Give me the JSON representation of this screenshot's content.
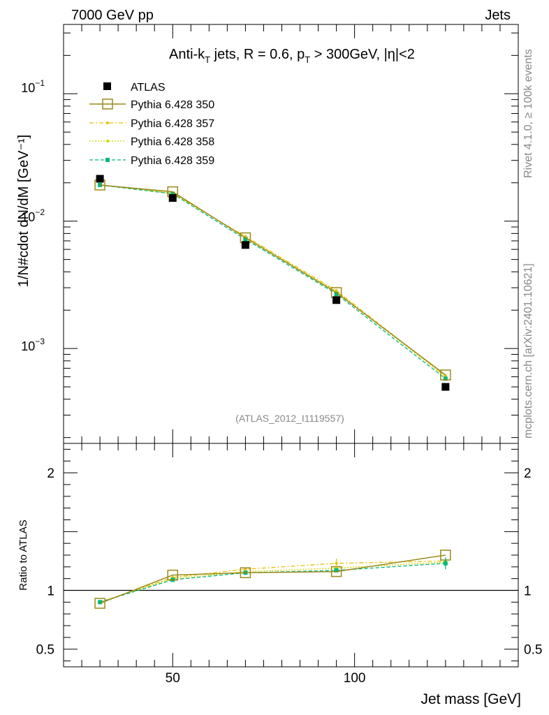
{
  "header": {
    "left": "7000 GeV pp",
    "right": "Jets"
  },
  "side_labels": {
    "rivet": "Rivet 4.1.0, ≥ 100k events",
    "mcplots": "mcplots.cern.ch [arXiv:2401.10621]"
  },
  "plot_title": {
    "p1": "Anti-k",
    "s1": "T",
    "p2": " jets, R = 0.6, p",
    "s2": "T",
    "p3": " > 300GeV, |η|<2"
  },
  "colors": {
    "atlas": "#000000",
    "p350": "#9a8a1a",
    "p357": "#e6c100",
    "p358": "#cfd400",
    "p359": "#00b87a"
  },
  "chart_data": [
    {
      "type": "line",
      "name": "main",
      "yscale": "log",
      "xlabel": "Jet mass [GeV]",
      "ylabel": "1/N#cdot dN/dM [GeV⁻¹]",
      "xlim": [
        20,
        145
      ],
      "ylim": [
        0.00018,
        0.35
      ],
      "y_ticks": [
        {
          "value": 0.1,
          "base": "10",
          "exp": "−1"
        },
        {
          "value": 0.01,
          "base": "10",
          "exp": "−2"
        },
        {
          "value": 0.001,
          "base": "10",
          "exp": "−3"
        }
      ],
      "x": [
        30,
        50,
        70,
        95,
        125
      ],
      "watermark": "(ATLAS_2012_I1119557)",
      "series": [
        {
          "name": "ATLAS",
          "key": "atlas",
          "values": [
            0.0215,
            0.0152,
            0.0065,
            0.0024,
            0.0005
          ]
        },
        {
          "name": "Pythia 6.428 350",
          "key": "p350",
          "values": [
            0.0192,
            0.017,
            0.0074,
            0.00275,
            0.00062
          ]
        },
        {
          "name": "Pythia 6.428 357",
          "key": "p357",
          "values": [
            0.0193,
            0.0165,
            0.0076,
            0.00285,
            0.00061
          ]
        },
        {
          "name": "Pythia 6.428 358",
          "key": "p358",
          "values": [
            0.0192,
            0.0166,
            0.0075,
            0.0028,
            0.0006
          ]
        },
        {
          "name": "Pythia 6.428 359",
          "key": "p359",
          "values": [
            0.0192,
            0.0164,
            0.0072,
            0.00268,
            0.00058
          ]
        }
      ]
    },
    {
      "type": "line",
      "name": "ratio",
      "ylabel": "Ratio to ATLAS",
      "xlabel": "Jet mass [GeV]",
      "xlim": [
        20,
        145
      ],
      "ylim": [
        0.35,
        2.25
      ],
      "y_ticks": [
        {
          "value": 0.5,
          "label": "0.5"
        },
        {
          "value": 1,
          "label": "1"
        },
        {
          "value": 2,
          "label": "2"
        }
      ],
      "x_ticks": [
        {
          "value": 50,
          "label": "50"
        },
        {
          "value": 100,
          "label": "100"
        }
      ],
      "reference": 1,
      "x": [
        30,
        50,
        70,
        95,
        125
      ],
      "series": [
        {
          "name": "Pythia 6.428 350",
          "key": "p350",
          "values": [
            0.89,
            1.13,
            1.15,
            1.16,
            1.3
          ]
        },
        {
          "name": "Pythia 6.428 357",
          "key": "p357",
          "values": [
            0.9,
            1.11,
            1.18,
            1.23,
            1.25
          ]
        },
        {
          "name": "Pythia 6.428 358",
          "key": "p358",
          "values": [
            0.9,
            1.1,
            1.16,
            1.19,
            1.24
          ]
        },
        {
          "name": "Pythia 6.428 359",
          "key": "p359",
          "values": [
            0.9,
            1.09,
            1.15,
            1.17,
            1.23
          ]
        }
      ]
    }
  ]
}
